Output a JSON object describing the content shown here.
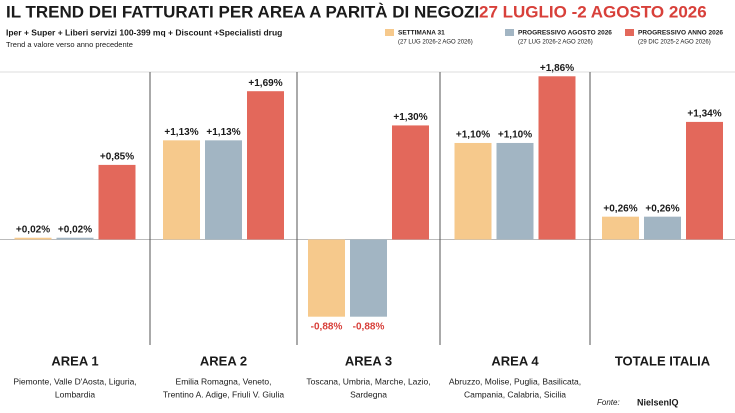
{
  "chart_data": {
    "type": "bar",
    "title": "IL TREND DEI FATTURATI PER AREA A PARITÀ DI NEGOZI",
    "title_period": "27 LUGLIO -2 AGOSTO 2026",
    "subtitle": "Iper + Super + Liberi servizi 100-399 mq + Discount +Specialisti drug",
    "note": "Trend a valore verso anno precedente",
    "categories": [
      "AREA 1",
      "AREA 2",
      "AREA 3",
      "AREA 4",
      "TOTALE ITALIA"
    ],
    "regions": [
      [
        "Piemonte, Valle D'Aosta, Liguria,",
        "Lombardia"
      ],
      [
        "Emilia Romagna, Veneto,",
        "Trentino A. Adige, Friuli V. Giulia"
      ],
      [
        "Toscana, Umbria, Marche, Lazio,",
        "Sardegna"
      ],
      [
        "Abruzzo, Molise, Puglia, Basilicata,",
        "Campania, Calabria, Sicilia"
      ],
      []
    ],
    "series": [
      {
        "name": "SETTIMANA 31",
        "period": "(27 LUG 2026-2 AGO 2026)",
        "color": "#f6c98c",
        "values": [
          0.02,
          1.13,
          -0.88,
          1.1,
          0.26
        ],
        "value_labels": [
          "+0,02%",
          "+1,13%",
          "-0,88%",
          "+1,10%",
          "+0,26%"
        ]
      },
      {
        "name": "PROGRESSIVO AGOSTO 2026",
        "period": "(27 LUG 2026-2 AGO 2026)",
        "color": "#a2b5c3",
        "values": [
          0.02,
          1.13,
          -0.88,
          1.1,
          0.26
        ],
        "value_labels": [
          "+0,02%",
          "+1,13%",
          "-0,88%",
          "+1,10%",
          "+0,26%"
        ]
      },
      {
        "name": "PROGRESSIVO ANNO 2026",
        "period": "(29 DIC 2025-2 AGO 2026)",
        "color": "#e3685b",
        "values": [
          0.85,
          1.69,
          1.3,
          1.86,
          1.34
        ],
        "value_labels": [
          "+0,85%",
          "+1,69%",
          "+1,30%",
          "+1,86%",
          "+1,34%"
        ]
      }
    ],
    "ylim": [
      -1.1,
      2.0
    ],
    "source_label": "Fonte:",
    "source": "NielsenIQ"
  }
}
